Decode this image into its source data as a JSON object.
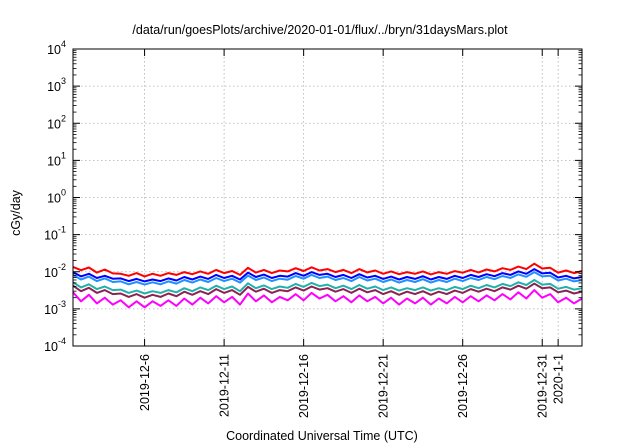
{
  "chart_data": {
    "type": "line",
    "title": "/data/run/goesPlots/archive/2020-01-01/flux/../bryn/31daysMars.plot",
    "xlabel": "Coordinated Universal Time (UTC)",
    "ylabel": "cGy/day",
    "yscale": "log",
    "ylim": [
      0.0001,
      10000
    ],
    "xlim": [
      "2019-12-01T12:00",
      "2020-01-02T12:00"
    ],
    "grid": true,
    "y_ticks": [
      {
        "value": 0.0001,
        "base": "10",
        "exp": "-4"
      },
      {
        "value": 0.001,
        "base": "10",
        "exp": "-3"
      },
      {
        "value": 0.01,
        "base": "10",
        "exp": "-2"
      },
      {
        "value": 0.1,
        "base": "10",
        "exp": "-1"
      },
      {
        "value": 1,
        "base": "10",
        "exp": "0"
      },
      {
        "value": 10,
        "base": "10",
        "exp": "1"
      },
      {
        "value": 100,
        "base": "10",
        "exp": "2"
      },
      {
        "value": 1000,
        "base": "10",
        "exp": "3"
      },
      {
        "value": 10000,
        "base": "10",
        "exp": "4"
      }
    ],
    "x_ticks": [
      {
        "date": "2019-12-06",
        "label": "2019-12-6"
      },
      {
        "date": "2019-12-11",
        "label": "2019-12-11"
      },
      {
        "date": "2019-12-16",
        "label": "2019-12-16"
      },
      {
        "date": "2019-12-21",
        "label": "2019-12-21"
      },
      {
        "date": "2019-12-26",
        "label": "2019-12-26"
      },
      {
        "date": "2019-12-31",
        "label": "2019-12-31"
      },
      {
        "date": "2020-01-01",
        "label": "2020-1-1"
      }
    ],
    "x": [
      "2019-12-01T12:00",
      "2019-12-02T00:00",
      "2019-12-02T12:00",
      "2019-12-03T00:00",
      "2019-12-03T12:00",
      "2019-12-04T00:00",
      "2019-12-04T12:00",
      "2019-12-05T00:00",
      "2019-12-05T12:00",
      "2019-12-06T00:00",
      "2019-12-06T12:00",
      "2019-12-07T00:00",
      "2019-12-07T12:00",
      "2019-12-08T00:00",
      "2019-12-08T12:00",
      "2019-12-09T00:00",
      "2019-12-09T12:00",
      "2019-12-10T00:00",
      "2019-12-10T12:00",
      "2019-12-11T00:00",
      "2019-12-11T12:00",
      "2019-12-12T00:00",
      "2019-12-12T12:00",
      "2019-12-13T00:00",
      "2019-12-13T12:00",
      "2019-12-14T00:00",
      "2019-12-14T12:00",
      "2019-12-15T00:00",
      "2019-12-15T12:00",
      "2019-12-16T00:00",
      "2019-12-16T12:00",
      "2019-12-17T00:00",
      "2019-12-17T12:00",
      "2019-12-18T00:00",
      "2019-12-18T12:00",
      "2019-12-19T00:00",
      "2019-12-19T12:00",
      "2019-12-20T00:00",
      "2019-12-20T12:00",
      "2019-12-21T00:00",
      "2019-12-21T12:00",
      "2019-12-22T00:00",
      "2019-12-22T12:00",
      "2019-12-23T00:00",
      "2019-12-23T12:00",
      "2019-12-24T00:00",
      "2019-12-24T12:00",
      "2019-12-25T00:00",
      "2019-12-25T12:00",
      "2019-12-26T00:00",
      "2019-12-26T12:00",
      "2019-12-27T00:00",
      "2019-12-27T12:00",
      "2019-12-28T00:00",
      "2019-12-28T12:00",
      "2019-12-29T00:00",
      "2019-12-29T12:00",
      "2019-12-30T00:00",
      "2019-12-30T12:00",
      "2019-12-31T00:00",
      "2019-12-31T12:00",
      "2020-01-01T00:00",
      "2020-01-01T12:00",
      "2020-01-02T00:00",
      "2020-01-02T12:00"
    ],
    "series": [
      {
        "color": "#ff0000",
        "values": [
          0.0135,
          0.011,
          0.013,
          0.0095,
          0.0115,
          0.009,
          0.0088,
          0.0078,
          0.0092,
          0.0075,
          0.0088,
          0.0078,
          0.0092,
          0.0082,
          0.0098,
          0.0086,
          0.0102,
          0.0088,
          0.0112,
          0.0092,
          0.0105,
          0.0082,
          0.0128,
          0.0095,
          0.0112,
          0.0092,
          0.0108,
          0.0102,
          0.0125,
          0.0105,
          0.0132,
          0.0108,
          0.0118,
          0.0098,
          0.0112,
          0.0092,
          0.0118,
          0.0096,
          0.0108,
          0.0088,
          0.0102,
          0.0086,
          0.0098,
          0.0088,
          0.0102,
          0.0085,
          0.0098,
          0.0088,
          0.0104,
          0.0094,
          0.0112,
          0.0096,
          0.0115,
          0.0102,
          0.0125,
          0.0112,
          0.0138,
          0.0118,
          0.0165,
          0.0122,
          0.0128,
          0.0095,
          0.0108,
          0.0092,
          0.0105
        ]
      },
      {
        "color": "#0000ff",
        "values": [
          0.0098,
          0.0075,
          0.0088,
          0.0068,
          0.0078,
          0.0065,
          0.0066,
          0.0056,
          0.0064,
          0.0055,
          0.0062,
          0.0056,
          0.0066,
          0.0058,
          0.0072,
          0.0062,
          0.0074,
          0.0064,
          0.0082,
          0.0068,
          0.0078,
          0.0062,
          0.0095,
          0.0072,
          0.0084,
          0.0068,
          0.0078,
          0.0074,
          0.0092,
          0.0078,
          0.0098,
          0.0082,
          0.0088,
          0.0072,
          0.0082,
          0.0068,
          0.0086,
          0.007,
          0.0078,
          0.0064,
          0.0074,
          0.0062,
          0.0072,
          0.0064,
          0.0076,
          0.0062,
          0.0072,
          0.0064,
          0.0078,
          0.0068,
          0.0082,
          0.0072,
          0.0086,
          0.0076,
          0.0092,
          0.0082,
          0.0102,
          0.0088,
          0.0118,
          0.009,
          0.0094,
          0.007,
          0.0078,
          0.0066,
          0.0072
        ]
      },
      {
        "color": "#1e90ff",
        "values": [
          0.0082,
          0.0062,
          0.0074,
          0.0056,
          0.0066,
          0.0053,
          0.0055,
          0.0046,
          0.0053,
          0.0045,
          0.0052,
          0.0046,
          0.0055,
          0.0048,
          0.006,
          0.0051,
          0.0062,
          0.0053,
          0.0068,
          0.0056,
          0.0065,
          0.0051,
          0.0079,
          0.006,
          0.007,
          0.0056,
          0.0065,
          0.0061,
          0.0077,
          0.0065,
          0.0082,
          0.0068,
          0.0074,
          0.006,
          0.0068,
          0.0056,
          0.0072,
          0.0058,
          0.0065,
          0.0053,
          0.0062,
          0.0051,
          0.006,
          0.0053,
          0.0063,
          0.0051,
          0.006,
          0.0053,
          0.0065,
          0.0056,
          0.0068,
          0.006,
          0.0072,
          0.0063,
          0.0077,
          0.0068,
          0.0085,
          0.0073,
          0.0098,
          0.0075,
          0.0078,
          0.0058,
          0.0065,
          0.0055,
          0.006
        ]
      },
      {
        "color": "#20b2aa",
        "values": [
          0.0052,
          0.0038,
          0.0046,
          0.0034,
          0.004,
          0.0032,
          0.0033,
          0.0027,
          0.0031,
          0.0026,
          0.003,
          0.0027,
          0.0032,
          0.0028,
          0.0036,
          0.003,
          0.0038,
          0.0032,
          0.0042,
          0.0034,
          0.004,
          0.003,
          0.0049,
          0.0036,
          0.0043,
          0.0034,
          0.004,
          0.0037,
          0.0047,
          0.0039,
          0.005,
          0.0041,
          0.0045,
          0.0036,
          0.0042,
          0.0034,
          0.0044,
          0.0035,
          0.004,
          0.0032,
          0.0038,
          0.0031,
          0.0036,
          0.0032,
          0.0038,
          0.0031,
          0.0036,
          0.0032,
          0.0039,
          0.0034,
          0.0042,
          0.0036,
          0.0044,
          0.0038,
          0.0047,
          0.0041,
          0.0052,
          0.0044,
          0.006,
          0.0045,
          0.0047,
          0.0035,
          0.0039,
          0.0033,
          0.0036
        ]
      },
      {
        "color": "#8b2252",
        "values": [
          0.0042,
          0.003,
          0.0037,
          0.0027,
          0.0032,
          0.0025,
          0.0026,
          0.0021,
          0.0025,
          0.002,
          0.0024,
          0.0021,
          0.0026,
          0.0022,
          0.0029,
          0.0024,
          0.003,
          0.0025,
          0.0034,
          0.0027,
          0.0032,
          0.0024,
          0.0039,
          0.0029,
          0.0035,
          0.0027,
          0.0032,
          0.003,
          0.0038,
          0.0031,
          0.004,
          0.0033,
          0.0036,
          0.0029,
          0.0034,
          0.0027,
          0.0035,
          0.0028,
          0.0032,
          0.0025,
          0.003,
          0.0024,
          0.0029,
          0.0025,
          0.003,
          0.0024,
          0.0029,
          0.0025,
          0.0031,
          0.0027,
          0.0034,
          0.0029,
          0.0035,
          0.003,
          0.0038,
          0.0033,
          0.0042,
          0.0035,
          0.0048,
          0.0036,
          0.0038,
          0.0028,
          0.0031,
          0.0026,
          0.0029
        ]
      },
      {
        "color": "#ff00ff",
        "values": [
          0.0028,
          0.0016,
          0.0024,
          0.0014,
          0.002,
          0.0013,
          0.0017,
          0.0011,
          0.0016,
          0.0011,
          0.0016,
          0.0012,
          0.0017,
          0.0012,
          0.0019,
          0.0013,
          0.002,
          0.0014,
          0.0022,
          0.0015,
          0.0021,
          0.0013,
          0.0026,
          0.0016,
          0.0023,
          0.0015,
          0.0021,
          0.0017,
          0.0025,
          0.0017,
          0.0027,
          0.0019,
          0.0024,
          0.0016,
          0.0022,
          0.0015,
          0.0023,
          0.0016,
          0.0021,
          0.0014,
          0.002,
          0.0013,
          0.0019,
          0.0014,
          0.002,
          0.0013,
          0.0019,
          0.0014,
          0.0021,
          0.0015,
          0.0022,
          0.0016,
          0.0023,
          0.0017,
          0.0025,
          0.0018,
          0.0028,
          0.0019,
          0.0032,
          0.002,
          0.0025,
          0.0015,
          0.002,
          0.0014,
          0.0019
        ]
      }
    ]
  }
}
